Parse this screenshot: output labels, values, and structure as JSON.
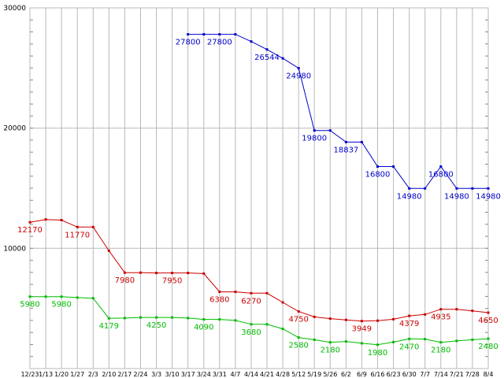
{
  "chart_data": {
    "type": "line",
    "title": "",
    "xlabel": "",
    "ylabel": "",
    "ylim": [
      0,
      30000
    ],
    "y_major_ticks": [
      10000,
      20000,
      30000
    ],
    "y_tick_labels": [
      "10000",
      "20000",
      "30000"
    ],
    "y_minor_step": 1000,
    "grid": true,
    "legend": "none",
    "x_tick_labels": [
      "12/23",
      "1/13",
      "1/20",
      "1/27",
      "2/3",
      "2/10",
      "2/17",
      "2/24",
      "3/3",
      "3/10",
      "3/17",
      "3/24",
      "3/31",
      "4/7",
      "4/14",
      "4/21",
      "4/28",
      "5/12",
      "5/19",
      "5/26",
      "6/2",
      "6/9",
      "6/16",
      "6/23",
      "6/30",
      "7/7",
      "7/14",
      "7/21",
      "7/28",
      "8/4"
    ],
    "colors": {
      "grid": "#b8b8b8",
      "axis": "#888888",
      "background": "#ffffff",
      "tick_text": "#000000"
    },
    "series": [
      {
        "name": "blue",
        "color": "#0000cc",
        "start_index": 10,
        "values": [
          27800,
          27800,
          27800,
          27800,
          27200,
          26544,
          25800,
          24980,
          19800,
          19800,
          18837,
          18837,
          16800,
          16800,
          14980,
          14980,
          16800,
          14980,
          14980,
          14980
        ],
        "point_labels": [
          "27800",
          null,
          "27800",
          null,
          null,
          "26544",
          null,
          "24980",
          "19800",
          null,
          "18837",
          null,
          "16800",
          null,
          "14980",
          null,
          "16800",
          "14980",
          null,
          "14980"
        ]
      },
      {
        "name": "red",
        "color": "#cc0000",
        "start_index": 0,
        "values": [
          12170,
          12400,
          12350,
          11770,
          11770,
          9800,
          7980,
          7980,
          7950,
          7950,
          7950,
          7900,
          6380,
          6380,
          6270,
          6270,
          5500,
          4750,
          4300,
          4150,
          4050,
          3949,
          3980,
          4100,
          4379,
          4500,
          4935,
          4935,
          4800,
          4650
        ],
        "point_labels": [
          "12170",
          null,
          null,
          "11770",
          null,
          null,
          "7980",
          null,
          null,
          "7950",
          null,
          null,
          "6380",
          null,
          "6270",
          null,
          null,
          "4750",
          null,
          null,
          null,
          "3949",
          null,
          null,
          "4379",
          null,
          "4935",
          null,
          null,
          "4650"
        ]
      },
      {
        "name": "green",
        "color": "#00bb00",
        "start_index": 0,
        "values": [
          5980,
          5980,
          5980,
          5900,
          5850,
          4179,
          4200,
          4250,
          4250,
          4250,
          4200,
          4090,
          4090,
          4000,
          3680,
          3680,
          3300,
          2580,
          2400,
          2180,
          2250,
          2100,
          1980,
          2200,
          2470,
          2450,
          2180,
          2300,
          2400,
          2480
        ],
        "point_labels": [
          "5980",
          null,
          "5980",
          null,
          null,
          "4179",
          null,
          null,
          "4250",
          null,
          null,
          "4090",
          null,
          null,
          "3680",
          null,
          null,
          "2580",
          null,
          "2180",
          null,
          null,
          "1980",
          null,
          "2470",
          null,
          "2180",
          null,
          null,
          "2480"
        ]
      }
    ]
  }
}
